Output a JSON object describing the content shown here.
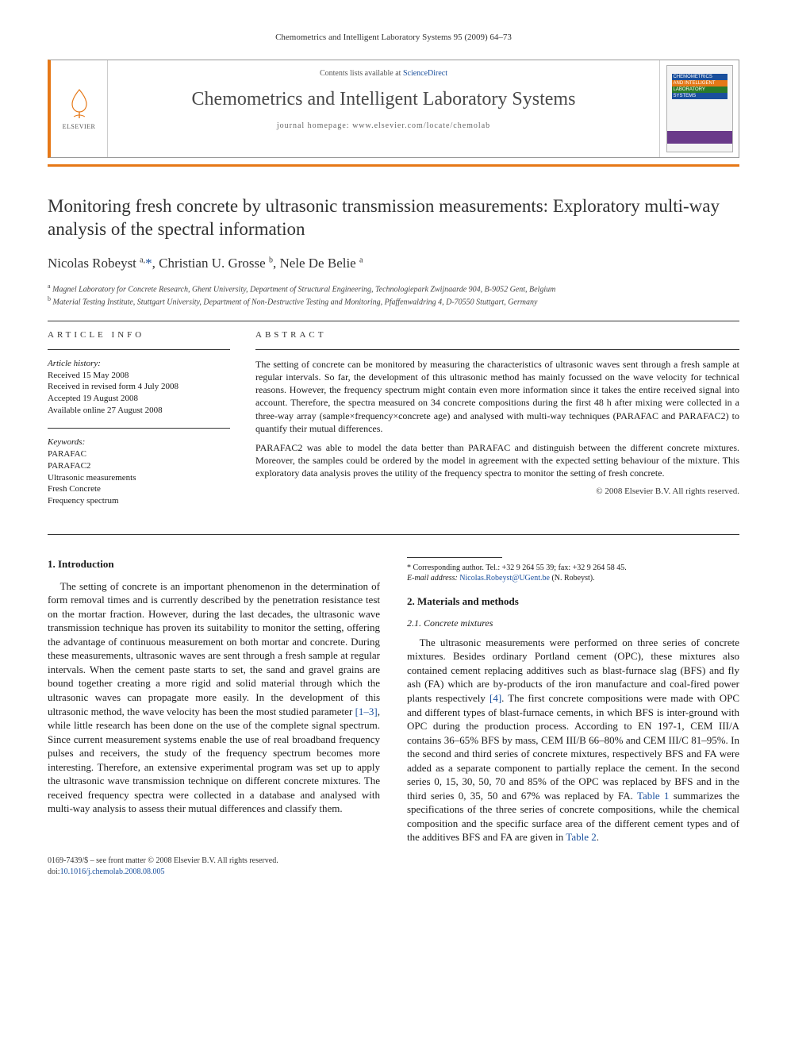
{
  "running_header": "Chemometrics and Intelligent Laboratory Systems 95 (2009) 64–73",
  "masthead": {
    "contents_prefix": "Contents lists available at ",
    "contents_link": "ScienceDirect",
    "journal": "Chemometrics and Intelligent Laboratory Systems",
    "homepage_prefix": "journal homepage: ",
    "homepage": "www.elsevier.com/locate/chemolab",
    "publisher_label": "ELSEVIER",
    "cover_lines": [
      "CHEMOMETRICS",
      "AND INTELLIGENT",
      "LABORATORY",
      "SYSTEMS"
    ]
  },
  "colors": {
    "accent_orange": "#e67817",
    "link_blue": "#1a4f9c",
    "rule_gray": "#333333",
    "cover_purple": "#6a3a8a"
  },
  "title": "Monitoring fresh concrete by ultrasonic transmission measurements: Exploratory multi-way analysis of the spectral information",
  "authors_html": "Nicolas Robeyst <sup>a,</sup><a href=\"#\">*</a>, Christian U. Grosse <sup>b</sup>, Nele De Belie <sup>a</sup>",
  "affiliations": [
    {
      "key": "a",
      "text": "Magnel Laboratory for Concrete Research, Ghent University, Department of Structural Engineering, Technologiepark Zwijnaarde 904, B-9052 Gent, Belgium"
    },
    {
      "key": "b",
      "text": "Material Testing Institute, Stuttgart University, Department of Non-Destructive Testing and Monitoring, Pfaffenwaldring 4, D-70550 Stuttgart, Germany"
    }
  ],
  "info_heading": "ARTICLE INFO",
  "abstract_heading": "ABSTRACT",
  "article_info": {
    "history_label": "Article history:",
    "history": [
      "Received 15 May 2008",
      "Received in revised form 4 July 2008",
      "Accepted 19 August 2008",
      "Available online 27 August 2008"
    ],
    "keywords_label": "Keywords:",
    "keywords": [
      "PARAFAC",
      "PARAFAC2",
      "Ultrasonic measurements",
      "Fresh Concrete",
      "Frequency spectrum"
    ]
  },
  "abstract": [
    "The setting of concrete can be monitored by measuring the characteristics of ultrasonic waves sent through a fresh sample at regular intervals. So far, the development of this ultrasonic method has mainly focussed on the wave velocity for technical reasons. However, the frequency spectrum might contain even more information since it takes the entire received signal into account. Therefore, the spectra measured on 34 concrete compositions during the first 48 h after mixing were collected in a three-way array (sample×frequency×concrete age) and analysed with multi-way techniques (PARAFAC and PARAFAC2) to quantify their mutual differences.",
    "PARAFAC2 was able to model the data better than PARAFAC and distinguish between the different concrete mixtures. Moreover, the samples could be ordered by the model in agreement with the expected setting behaviour of the mixture. This exploratory data analysis proves the utility of the frequency spectra to monitor the setting of fresh concrete."
  ],
  "copyright": "© 2008 Elsevier B.V. All rights reserved.",
  "sections": {
    "s1_head": "1. Introduction",
    "s1_p1a": "The setting of concrete is an important phenomenon in the determination of form removal times and is currently described by the penetration resistance test on the mortar fraction. However, during the last decades, the ultrasonic wave transmission technique has proven its suitability to monitor the setting, offering the advantage of continuous measurement on both mortar and concrete. During these measurements, ultrasonic waves are sent through a fresh sample at regular intervals. When the cement paste starts to set, the sand and gravel grains are bound together creating a more rigid and solid material through which the ultrasonic waves can propagate more easily. In the development of this ultrasonic method, the wave velocity has been the most studied parameter ",
    "s1_ref1": "[1–3]",
    "s1_p1b": ", while little research has been done on the use of the complete signal spectrum. Since current measurement systems enable the use of real broadband frequency pulses and receivers, the study of the frequency spectrum becomes more interesting. Therefore, an extensive experimental program was set up to apply the ultrasonic wave transmission technique on different concrete mixtures. The received frequency spectra were collected in a database and analysed with multi-way analysis to assess their mutual differences and classify them.",
    "s2_head": "2. Materials and methods",
    "s21_head": "2.1. Concrete mixtures",
    "s21_p1a": "The ultrasonic measurements were performed on three series of concrete mixtures. Besides ordinary Portland cement (OPC), these mixtures also contained cement replacing additives such as blast-furnace slag (BFS) and fly ash (FA) which are by-products of the iron manufacture and coal-fired power plants respectively ",
    "s21_ref4": "[4]",
    "s21_p1b": ". The first concrete compositions were made with OPC and different types of blast-furnace cements, in which BFS is inter-ground with OPC during the production process. According to EN 197-1, CEM III/A contains 36–65% BFS by mass, CEM III/B 66–80% and CEM III/C 81–95%. In the second and third series of concrete mixtures, respectively BFS and FA were added as a separate component to partially replace the cement. In the second series 0, 15, 30, 50, 70 and 85% of the OPC was replaced by BFS and in the third series 0, 35, 50 and 67% was replaced by FA. ",
    "s21_ref_t1": "Table 1",
    "s21_p1c": " summarizes the specifications of the three series of concrete compositions, while the chemical composition and the specific surface area of the different cement types and of the additives BFS and FA are given in ",
    "s21_ref_t2": "Table 2",
    "s21_p1d": "."
  },
  "footnote": {
    "marker": "*",
    "line1": "Corresponding author. Tel.: +32 9 264 55 39; fax: +32 9 264 58 45.",
    "line2_label": "E-mail address:",
    "line2_email": "Nicolas.Robeyst@UGent.be",
    "line2_tail": " (N. Robeyst)."
  },
  "pagefoot": {
    "line1": "0169-7439/$ – see front matter © 2008 Elsevier B.V. All rights reserved.",
    "doi_prefix": "doi:",
    "doi": "10.1016/j.chemolab.2008.08.005"
  }
}
